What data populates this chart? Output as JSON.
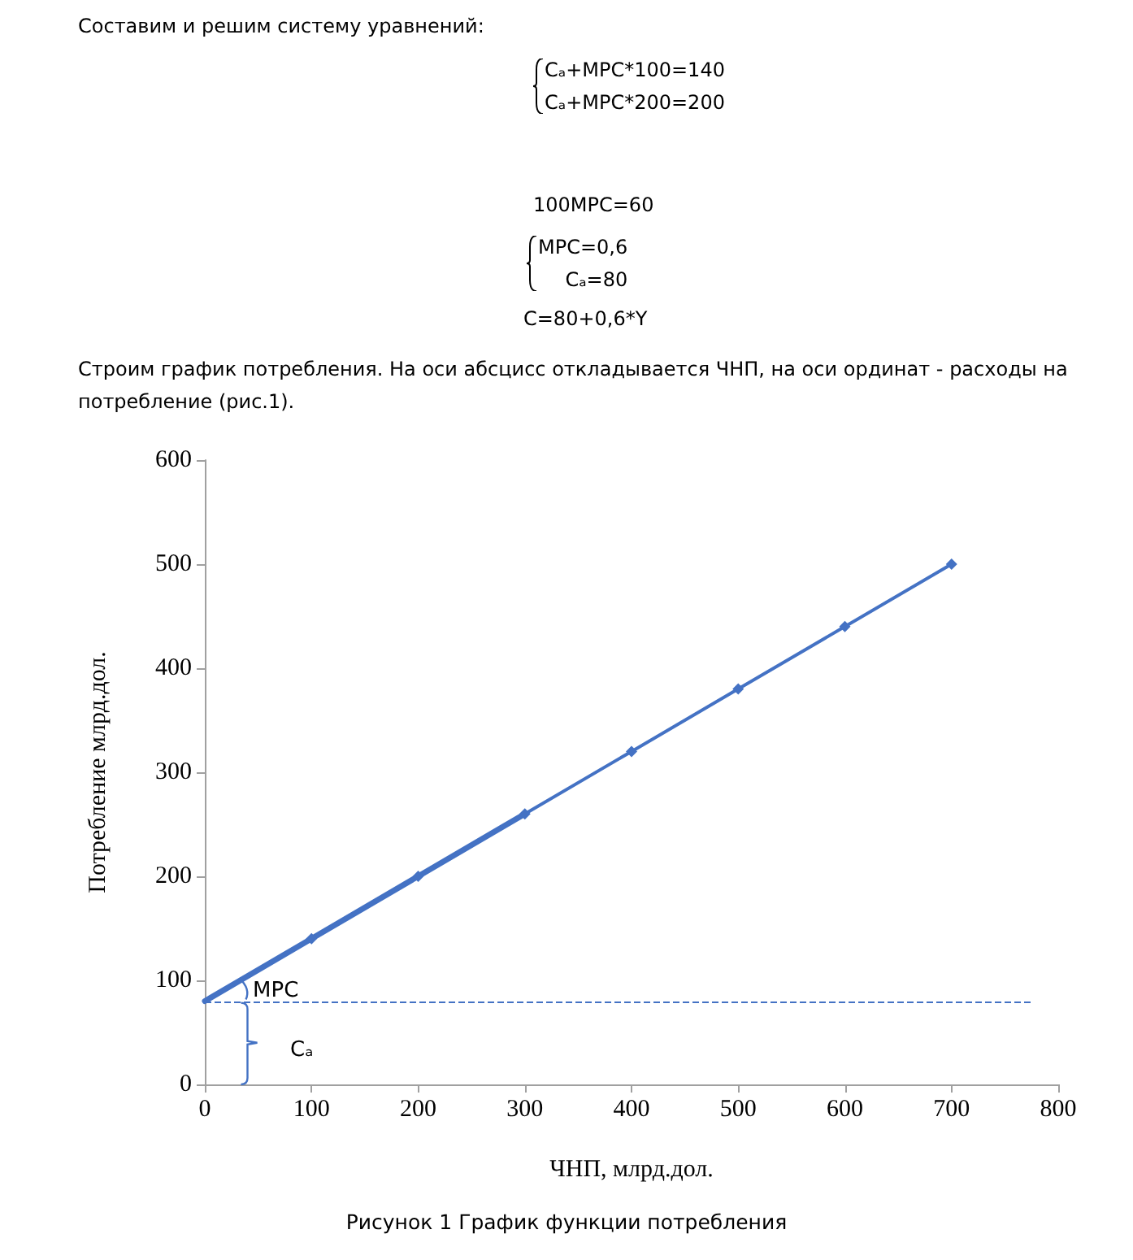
{
  "chart_data": {
    "type": "line",
    "title": "Рисунок 1 График функции потребления",
    "xlabel": "ЧНП, млрд.дол.",
    "ylabel": "Потребление млрд.дол.",
    "annotations": [
      "Составим и решим систему уравнений:",
      "Cₐ+MPC*100=140\nCₐ+MPC*200=200",
      "100MPC=60",
      "MPC=0,6\nCₐ=80",
      "C=80+0,6*Y",
      "Строим график потребления. На оси абсцисс откладывается ЧНП, на оси ординат - расходы на потребление (рис.1).",
      "MPC",
      "Cₐ"
    ],
    "series": [
      {
        "x": [
          100,
          200,
          300,
          400,
          500,
          600,
          700
        ],
        "values": [
          140,
          200,
          260,
          320,
          380,
          440,
          500
        ],
        "color": "#4472c4",
        "marker": "diamond"
      },
      {
        "x": [
          0,
          100,
          200,
          300
        ],
        "values": [
          80,
          140,
          200,
          260
        ],
        "color": "#4472c4",
        "marker": "none"
      }
    ],
    "ref_lines": [
      {
        "axis": "y",
        "value": 80,
        "color": "#4472c4",
        "line_style": "dashed"
      }
    ],
    "xlim": [
      0,
      800
    ],
    "xticks": [
      0,
      100,
      200,
      300,
      400,
      500,
      600,
      700,
      800
    ],
    "ylim": [
      0,
      600
    ],
    "yticks": [
      0,
      100,
      200,
      300,
      400,
      500,
      600
    ],
    "grid": false,
    "line_style": "solid"
  }
}
